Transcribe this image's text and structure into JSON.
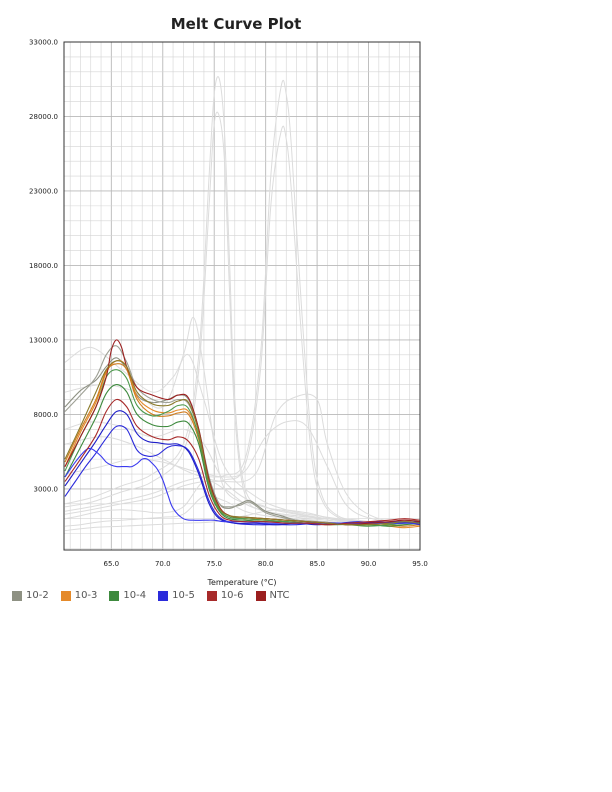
{
  "chart_data": {
    "type": "line",
    "title": "Melt Curve Plot",
    "xlabel": "Temperature (°C)",
    "ylabel": "",
    "xlim": [
      60.4,
      95.0
    ],
    "ylim": [
      -1100,
      33000
    ],
    "x_ticks": [
      "65.0",
      "70.0",
      "75.0",
      "80.0",
      "85.0",
      "90.0",
      "95.0"
    ],
    "x_tick_values": [
      65,
      70,
      75,
      80,
      85,
      90,
      95
    ],
    "y_ticks": [
      "3000.0",
      "8000.0",
      "13000.0",
      "18000.0",
      "23000.0",
      "28000.0",
      "33000.0"
    ],
    "y_tick_values": [
      3000,
      8000,
      13000,
      18000,
      23000,
      28000,
      33000
    ],
    "grid": true,
    "legend_position": "bottom-left",
    "series": [
      {
        "name": "10-2",
        "color": "#8e9183",
        "x": [
          60.5,
          62.0,
          63.5,
          64.5,
          65.5,
          66.5,
          67.5,
          69.0,
          70.5,
          71.5,
          72.5,
          73.5,
          74.5,
          75.5,
          76.5,
          77.5,
          78.5,
          80.0,
          81.5,
          83.0,
          85.0,
          87.0,
          89.0,
          91.0,
          93.0,
          95.0
        ],
        "values": [
          8500,
          9600,
          10300,
          11200,
          11800,
          11000,
          9300,
          8800,
          9000,
          9300,
          9000,
          7000,
          3800,
          2000,
          1700,
          2000,
          2200,
          1500,
          1200,
          900,
          800,
          700,
          650,
          700,
          800,
          900
        ]
      },
      {
        "name": "10-2",
        "color": "#9ea095",
        "x": [
          60.5,
          62.0,
          63.5,
          64.5,
          65.5,
          66.5,
          67.5,
          69.0,
          70.5,
          71.5,
          72.5,
          73.5,
          74.5,
          75.5,
          76.5,
          77.5,
          78.5,
          80.0,
          81.5,
          83.0,
          85.0,
          87.0,
          89.0,
          91.0,
          93.0,
          95.0
        ],
        "values": [
          8200,
          9300,
          10500,
          12000,
          12600,
          11500,
          9800,
          9000,
          8800,
          9000,
          8700,
          6800,
          3500,
          2000,
          1800,
          1900,
          2100,
          1400,
          1100,
          900,
          800,
          700,
          600,
          650,
          700,
          800
        ]
      },
      {
        "name": "10-3",
        "color": "#e58a2a",
        "x": [
          60.5,
          62.0,
          63.5,
          64.5,
          65.5,
          66.5,
          67.5,
          69.0,
          70.5,
          71.5,
          72.5,
          73.5,
          74.5,
          75.5,
          76.5,
          78.0,
          80.0,
          82.0,
          84.0,
          86.0,
          88.0,
          90.0,
          92.0,
          93.5,
          95.0
        ],
        "values": [
          4500,
          6800,
          8800,
          10800,
          11600,
          11200,
          9200,
          8300,
          8100,
          8300,
          8200,
          6500,
          3300,
          1700,
          1200,
          1000,
          1000,
          900,
          800,
          700,
          600,
          600,
          500,
          400,
          500
        ]
      },
      {
        "name": "10-3",
        "color": "#d07d1f",
        "x": [
          60.5,
          62.0,
          63.5,
          64.5,
          65.5,
          66.5,
          67.5,
          69.0,
          70.5,
          71.5,
          72.5,
          73.5,
          74.5,
          75.5,
          76.5,
          78.0,
          80.0,
          82.0,
          84.0,
          86.0,
          88.0,
          90.0,
          92.0,
          93.5,
          95.0
        ],
        "values": [
          4800,
          7000,
          9000,
          10900,
          11400,
          11000,
          9000,
          8000,
          7900,
          8100,
          8000,
          6300,
          3200,
          1700,
          1200,
          1000,
          900,
          800,
          700,
          600,
          650,
          700,
          600,
          500,
          600
        ]
      },
      {
        "name": "10-4",
        "color": "#3e8a3e",
        "x": [
          60.5,
          62.0,
          63.5,
          64.5,
          65.5,
          66.5,
          67.5,
          69.0,
          70.5,
          71.5,
          72.5,
          73.5,
          74.5,
          75.5,
          76.5,
          78.0,
          80.0,
          82.0,
          84.0,
          86.0,
          88.0,
          90.0,
          92.0,
          93.5,
          95.0
        ],
        "values": [
          3800,
          5800,
          7800,
          9400,
          10000,
          9500,
          8000,
          7300,
          7200,
          7500,
          7400,
          6000,
          3000,
          1500,
          1000,
          900,
          800,
          800,
          700,
          700,
          600,
          600,
          500,
          600,
          700
        ]
      },
      {
        "name": "10-4",
        "color": "#4f9a4f",
        "x": [
          60.5,
          62.0,
          63.5,
          64.5,
          65.5,
          66.5,
          67.5,
          69.0,
          70.5,
          71.5,
          72.5,
          73.5,
          74.5,
          75.5,
          76.5,
          78.0,
          80.0,
          82.0,
          84.0,
          86.0,
          88.0,
          90.0,
          92.0,
          93.5,
          95.0
        ],
        "values": [
          4200,
          6500,
          8500,
          10500,
          11000,
          10400,
          8600,
          7900,
          8200,
          8600,
          8400,
          6500,
          3200,
          1600,
          1100,
          1000,
          900,
          800,
          700,
          600,
          600,
          500,
          600,
          700,
          800
        ]
      },
      {
        "name": "10-5",
        "color": "#2b2bdb",
        "x": [
          60.5,
          61.5,
          62.5,
          63.5,
          64.5,
          65.5,
          66.5,
          67.5,
          68.5,
          69.5,
          70.5,
          71.5,
          72.5,
          73.5,
          74.5,
          75.5,
          77.0,
          79.0,
          81.0,
          83.0,
          85.0,
          87.0,
          89.0,
          91.0,
          93.0,
          95.0
        ],
        "values": [
          2500,
          3500,
          4500,
          5400,
          6400,
          7200,
          7000,
          5600,
          5200,
          5300,
          5800,
          5900,
          5600,
          4200,
          2200,
          1100,
          700,
          600,
          600,
          600,
          700,
          700,
          800,
          700,
          800,
          600
        ]
      },
      {
        "name": "10-5",
        "color": "#1e1ec8",
        "x": [
          60.5,
          61.5,
          62.5,
          63.5,
          64.5,
          65.5,
          66.5,
          67.5,
          68.5,
          69.5,
          70.5,
          71.5,
          72.5,
          73.5,
          74.5,
          75.5,
          77.0,
          79.0,
          81.0,
          83.0,
          85.0,
          87.0,
          89.0,
          91.0,
          93.0,
          95.0
        ],
        "values": [
          3200,
          4200,
          5200,
          6200,
          7300,
          8200,
          8000,
          6700,
          6200,
          6100,
          6000,
          6000,
          5500,
          4000,
          2000,
          1000,
          700,
          700,
          600,
          700,
          600,
          700,
          700,
          800,
          700,
          800
        ]
      },
      {
        "name": "10-5",
        "color": "#3a3af0",
        "x": [
          60.5,
          61.5,
          62.5,
          63.0,
          63.5,
          64.0,
          64.5,
          65.0,
          65.5,
          66.0,
          66.5,
          67.0,
          67.5,
          68.0,
          68.5,
          69.0,
          69.5,
          70.0,
          70.5,
          71.0,
          72.0,
          73.0,
          74.0,
          75.0,
          76.0,
          78.0,
          80.0,
          83.0,
          86.0,
          89.0,
          92.0,
          95.0
        ],
        "values": [
          3800,
          4800,
          5600,
          5700,
          5500,
          5200,
          4800,
          4600,
          4500,
          4500,
          4500,
          4500,
          4700,
          5000,
          5000,
          4700,
          4300,
          3600,
          2600,
          1700,
          1000,
          900,
          900,
          900,
          800,
          800,
          700,
          700,
          700,
          700,
          700,
          700
        ]
      },
      {
        "name": "10-6",
        "color": "#a72a2a",
        "x": [
          60.5,
          62.0,
          63.5,
          64.5,
          65.5,
          66.5,
          67.5,
          69.0,
          70.5,
          71.5,
          72.5,
          73.5,
          74.5,
          75.5,
          76.5,
          78.0,
          80.0,
          82.0,
          84.0,
          86.0,
          88.0,
          90.0,
          92.0,
          93.5,
          95.0
        ],
        "values": [
          3500,
          5000,
          6600,
          8200,
          9000,
          8500,
          7200,
          6500,
          6300,
          6500,
          6200,
          5000,
          2600,
          1300,
          900,
          800,
          800,
          700,
          700,
          600,
          700,
          800,
          900,
          1000,
          900
        ]
      },
      {
        "name": "NTC",
        "color": "#9b1f1f",
        "x": [
          60.5,
          62.0,
          63.5,
          64.5,
          65.0,
          65.5,
          66.0,
          66.5,
          67.5,
          69.0,
          70.5,
          71.5,
          72.5,
          73.5,
          74.5,
          75.5,
          76.5,
          78.0,
          80.0,
          82.0,
          84.0,
          86.0,
          88.0,
          90.0,
          92.0,
          93.5,
          95.0
        ],
        "values": [
          4500,
          6500,
          8500,
          10500,
          12300,
          13000,
          12500,
          11200,
          9800,
          9300,
          9000,
          9300,
          9100,
          7000,
          3600,
          1800,
          1200,
          1100,
          1000,
          900,
          800,
          700,
          600,
          700,
          800,
          900,
          800
        ]
      },
      {
        "name": "NTC",
        "color": "#8a7a2a",
        "x": [
          60.5,
          62.0,
          63.5,
          64.5,
          65.5,
          66.5,
          67.5,
          69.0,
          70.5,
          71.5,
          72.5,
          73.5,
          74.5,
          75.5,
          76.5,
          78.0,
          80.0,
          82.0,
          84.0,
          86.0,
          88.0,
          90.0,
          92.0,
          93.5,
          95.0
        ],
        "values": [
          5000,
          7200,
          9500,
          11000,
          11600,
          11200,
          9500,
          8700,
          8600,
          8900,
          8800,
          6800,
          3400,
          1700,
          1200,
          1100,
          1000,
          900,
          800,
          700,
          600,
          600,
          700,
          800,
          700
        ]
      }
    ],
    "background_traces": [
      {
        "x": [
          60.5,
          63.0,
          66.0,
          69.0,
          72.0,
          73.5,
          74.5,
          75.0,
          75.5,
          76.0,
          76.5,
          77.0,
          78.0,
          80.0,
          83.0,
          86.0,
          89.0,
          92.0,
          95.0
        ],
        "values": [
          2000,
          2400,
          3200,
          4000,
          6000,
          12000,
          24000,
          29500,
          30500,
          27000,
          18000,
          9000,
          3000,
          1800,
          1300,
          1000,
          800,
          700,
          700
        ]
      },
      {
        "x": [
          60.5,
          63.0,
          66.0,
          69.0,
          72.0,
          73.5,
          74.5,
          75.0,
          75.5,
          76.0,
          76.5,
          77.0,
          78.0,
          80.0,
          83.0,
          86.0,
          89.0,
          92.0,
          95.0
        ],
        "values": [
          1800,
          2100,
          2800,
          3500,
          5500,
          11000,
          22000,
          27500,
          28000,
          25000,
          16000,
          8000,
          2600,
          1500,
          1100,
          900,
          700,
          600,
          600
        ]
      },
      {
        "x": [
          60.5,
          63.0,
          66.0,
          69.0,
          72.0,
          74.0,
          76.0,
          78.0,
          79.5,
          80.5,
          81.5,
          82.0,
          82.5,
          83.5,
          84.5,
          85.5,
          87.0,
          89.0,
          92.0,
          95.0
        ],
        "values": [
          1500,
          1800,
          2200,
          2700,
          3500,
          3800,
          3900,
          5000,
          12000,
          24000,
          30000,
          29500,
          26000,
          15000,
          6000,
          2500,
          1200,
          900,
          700,
          700
        ]
      },
      {
        "x": [
          60.5,
          63.0,
          66.0,
          69.0,
          72.0,
          74.0,
          76.0,
          78.0,
          79.5,
          80.5,
          81.5,
          82.0,
          82.5,
          83.5,
          84.5,
          85.5,
          87.0,
          89.0,
          92.0,
          95.0
        ],
        "values": [
          1300,
          1600,
          2000,
          2400,
          3200,
          3500,
          3600,
          4600,
          11000,
          22000,
          27000,
          26500,
          23000,
          13000,
          5000,
          2200,
          1100,
          800,
          600,
          600
        ]
      },
      {
        "x": [
          60.5,
          64.0,
          67.0,
          70.0,
          72.0,
          73.0,
          74.0,
          75.0,
          76.0,
          78.0,
          80.0,
          83.0,
          86.0,
          90.0,
          95.0
        ],
        "values": [
          9500,
          10000,
          9600,
          8500,
          12000,
          14500,
          11000,
          6000,
          3000,
          2000,
          1500,
          1200,
          1000,
          800,
          700
        ]
      },
      {
        "x": [
          60.5,
          64.0,
          67.0,
          70.0,
          73.0,
          76.0,
          79.0,
          81.0,
          83.0,
          85.0,
          86.0,
          88.0,
          91.0,
          95.0
        ],
        "values": [
          6000,
          6500,
          6000,
          5000,
          4000,
          3500,
          4000,
          8000,
          9200,
          9000,
          6000,
          2500,
          1000,
          800
        ]
      },
      {
        "x": [
          60.5,
          64.0,
          67.0,
          70.0,
          73.0,
          76.0,
          78.0,
          80.0,
          82.0,
          84.0,
          86.0,
          88.0,
          91.0,
          95.0
        ],
        "values": [
          4000,
          4500,
          5000,
          4800,
          4200,
          3800,
          4200,
          6500,
          7500,
          7200,
          4500,
          1800,
          900,
          700
        ]
      },
      {
        "x": [
          60.5,
          62.0,
          64.0,
          66.0,
          68.0,
          70.0,
          72.0,
          74.0,
          76.0,
          78.0,
          80.0,
          83.0,
          86.0,
          90.0,
          95.0
        ],
        "values": [
          1000,
          1200,
          1500,
          1600,
          1500,
          1400,
          1800,
          3500,
          3000,
          2000,
          1500,
          1200,
          1000,
          800,
          700
        ]
      },
      {
        "x": [
          60.5,
          62.0,
          64.0,
          66.0,
          68.0,
          70.0,
          72.0,
          74.0,
          76.0,
          78.0,
          80.0,
          83.0,
          86.0,
          90.0,
          95.0
        ],
        "values": [
          500,
          600,
          800,
          900,
          1000,
          1100,
          1300,
          2500,
          2200,
          1500,
          1200,
          1000,
          800,
          600,
          600
        ]
      },
      {
        "x": [
          60.5,
          63.0,
          66.0,
          69.0,
          72.0,
          75.0,
          78.0,
          81.0,
          84.0,
          87.0,
          90.0,
          95.0
        ],
        "values": [
          200,
          400,
          500,
          600,
          700,
          800,
          1200,
          1600,
          1400,
          900,
          700,
          600
        ]
      },
      {
        "x": [
          60.5,
          63.0,
          66.0,
          69.0,
          71.0,
          72.5,
          74.0,
          76.0,
          79.0,
          82.0,
          86.0,
          90.0,
          95.0
        ],
        "values": [
          11500,
          12500,
          11000,
          9500,
          10500,
          12000,
          9000,
          4500,
          2500,
          1600,
          1100,
          800,
          700
        ]
      },
      {
        "x": [
          60.5,
          63.0,
          66.0,
          69.0,
          72.0,
          74.0,
          76.0,
          79.0,
          82.0,
          86.0,
          90.0,
          95.0
        ],
        "values": [
          7000,
          7500,
          7200,
          6500,
          7000,
          6000,
          3500,
          2000,
          1500,
          1000,
          800,
          700
        ]
      }
    ]
  },
  "legend": {
    "items": [
      {
        "label": "10-2",
        "color": "#8e9183"
      },
      {
        "label": "10-3",
        "color": "#e58a2a"
      },
      {
        "label": "10-4",
        "color": "#3e8a3e"
      },
      {
        "label": "10-5",
        "color": "#2b2bdb"
      },
      {
        "label": "10-6",
        "color": "#a72a2a"
      },
      {
        "label": "NTC",
        "color": "#9b1f1f"
      }
    ]
  }
}
